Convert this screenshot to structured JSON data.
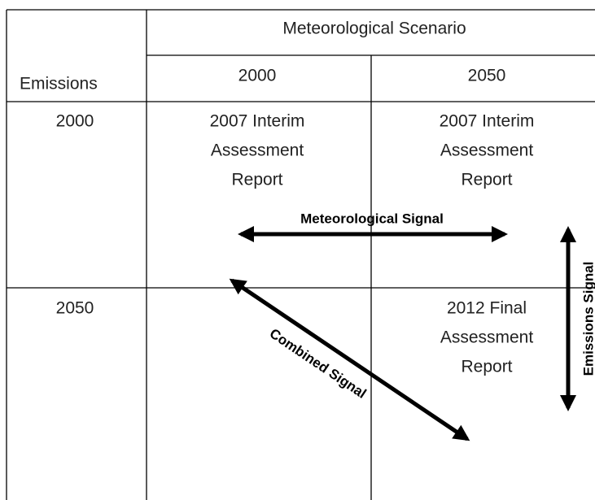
{
  "header": {
    "column_group": "Meteorological Scenario",
    "row_label": "Emissions",
    "columns": [
      "2000",
      "2050"
    ]
  },
  "rows": [
    {
      "label": "2000",
      "cells": [
        [
          "2007 Interim",
          "Assessment",
          "Report"
        ],
        [
          "2007 Interim",
          "Assessment",
          "Report"
        ]
      ]
    },
    {
      "label": "2050",
      "cells": [
        [],
        [
          "2012 Final",
          "Assessment",
          "Report"
        ]
      ]
    }
  ],
  "signals": {
    "meteorological": "Meteorological Signal",
    "emissions": "Emissions Signal",
    "combined": "Combined Signal"
  }
}
